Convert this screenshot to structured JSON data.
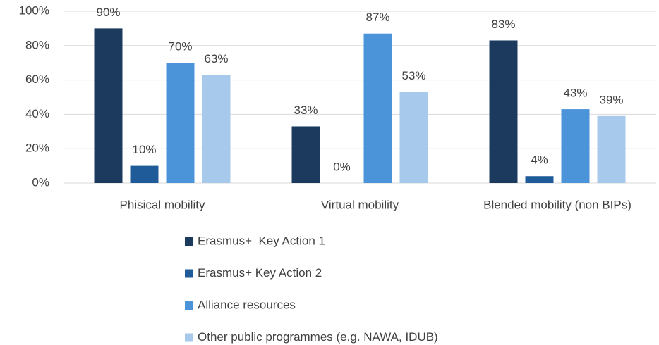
{
  "chart_data": {
    "type": "bar",
    "categories": [
      "Phisical mobility",
      "Virtual mobility",
      "Blended mobility (non BIPs)"
    ],
    "series": [
      {
        "name": "Erasmus+  Key Action 1",
        "color": "#1b3a5e",
        "values": [
          90,
          33,
          83
        ],
        "value_labels": [
          "90%",
          "33%",
          "83%"
        ]
      },
      {
        "name": "Erasmus+ Key Action 2",
        "color": "#1f5b98",
        "values": [
          10,
          0,
          4
        ],
        "value_labels": [
          "10%",
          "0%",
          "4%"
        ]
      },
      {
        "name": "Alliance resources",
        "color": "#4c94d9",
        "values": [
          70,
          87,
          43
        ],
        "value_labels": [
          "70%",
          "87%",
          "43%"
        ]
      },
      {
        "name": "Other public programmes (e.g. NAWA, IDUB)",
        "color": "#a6c9ec",
        "values": [
          63,
          53,
          39
        ],
        "value_labels": [
          "63%",
          "53%",
          "39%"
        ]
      }
    ],
    "ylim": [
      0,
      100
    ],
    "yticks": [
      {
        "value": 0,
        "label": "0%"
      },
      {
        "value": 20,
        "label": "20%"
      },
      {
        "value": 40,
        "label": "40%"
      },
      {
        "value": 60,
        "label": "60%"
      },
      {
        "value": 80,
        "label": "80%"
      },
      {
        "value": 100,
        "label": "100%"
      }
    ],
    "grid": true,
    "legend": "bottom"
  }
}
